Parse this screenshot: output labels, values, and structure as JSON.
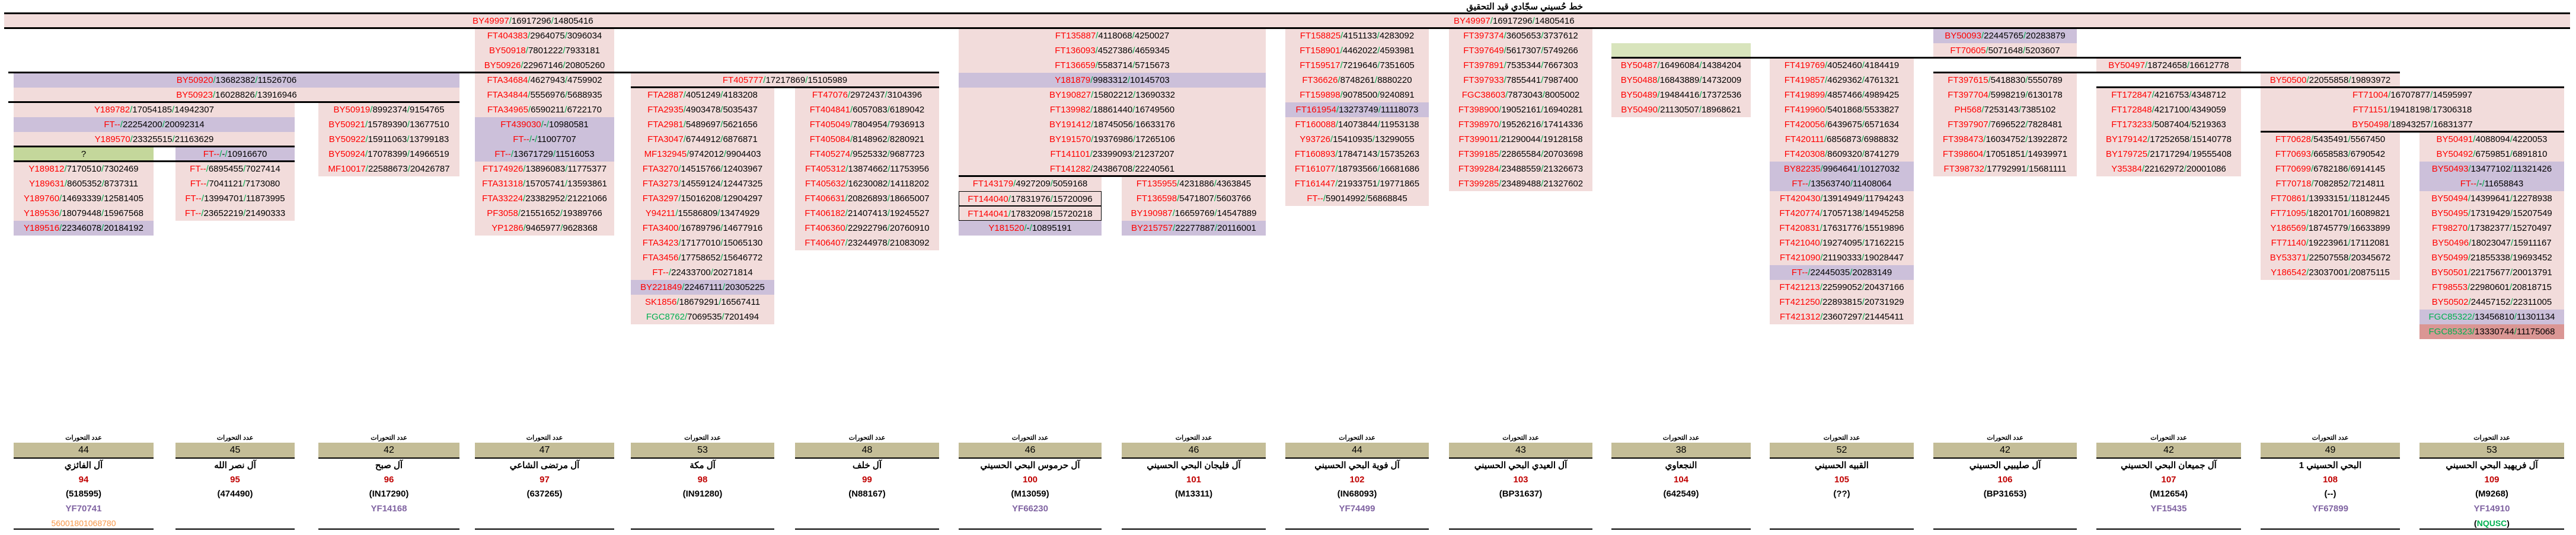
{
  "title": "خط حُسيني سجّادي قيد التحقيق",
  "root": {
    "snp": "BY49997",
    "pos1": "16917296",
    "pos2": "14805416"
  },
  "colors": {
    "snp": "#ff0000",
    "slash": "#00b050",
    "row_bg": "#f2dcdb",
    "highlight_bg": "#ccc0da",
    "header_bg": "#c4bd97",
    "number": "#c00000",
    "yf": "#8064a2"
  },
  "tree": {
    "blocks": {
      "b1": [
        [
          "FT404383",
          "2964075",
          "3096034"
        ],
        [
          "BY50918",
          "7801222",
          "7933181"
        ],
        [
          "BY50926",
          "22967146",
          "20805260"
        ]
      ],
      "b2": [
        [
          "FTA34684",
          "4627943",
          "4759902"
        ],
        [
          "FTA34844",
          "5556976",
          "5688935"
        ],
        [
          "FTA34965",
          "6590211",
          "6722170"
        ],
        [
          "FT439030",
          "-",
          "10980581",
          "p"
        ],
        [
          "FT--",
          "-",
          "11007707",
          "p"
        ],
        [
          "FT--",
          "13671729",
          "11516053",
          "p"
        ],
        [
          "FT174926",
          "13896083",
          "11775377"
        ],
        [
          "FTA31318",
          "15705741",
          "13593861"
        ],
        [
          "FTA33224",
          "23382952",
          "21221066"
        ],
        [
          "PF3058",
          "21551652",
          "19389766"
        ],
        [
          "YP1286",
          "9465977",
          "9628368"
        ]
      ],
      "b3": [
        [
          "BY50920",
          "13682382",
          "11526706",
          "p"
        ],
        [
          "BY50923",
          "16028826",
          "13916946"
        ]
      ],
      "b4": [
        [
          "Y189782",
          "17054185",
          "14942307"
        ],
        [
          "FT--",
          "22254200",
          "20092314",
          "p"
        ],
        [
          "Y189570",
          "23325515",
          "21163629"
        ]
      ],
      "b5q": "?",
      "b5": [
        [
          "FT--",
          "-",
          "10916670",
          "p"
        ]
      ],
      "b6": [
        [
          "Y189812",
          "7170510",
          "7302469"
        ],
        [
          "Y189631",
          "8605352",
          "8737311"
        ],
        [
          "Y189760",
          "14693339",
          "12581405"
        ],
        [
          "Y189536",
          "18079448",
          "15967568"
        ],
        [
          "Y189516",
          "22346078",
          "20184192",
          "p"
        ]
      ],
      "b7": [
        [
          "FT--",
          "6895455",
          "7027414"
        ],
        [
          "FT--",
          "7041121",
          "7173080"
        ],
        [
          "FT--",
          "13994701",
          "11873995"
        ],
        [
          "FT--",
          "23652219",
          "21490333"
        ]
      ],
      "b8": [
        [
          "BY50919",
          "8992374",
          "9154765"
        ],
        [
          "BY50921",
          "15789390",
          "13677510"
        ],
        [
          "BY50922",
          "15911063",
          "13799183"
        ],
        [
          "BY50924",
          "17078399",
          "14966519"
        ],
        [
          "MF10017",
          "22588673",
          "20426787"
        ]
      ],
      "b9": [
        [
          "FT405777",
          "17217869",
          "15105989"
        ]
      ],
      "b10": [
        [
          "FTA2887",
          "4051249",
          "4183208"
        ],
        [
          "FTA2935",
          "4903478",
          "5035437"
        ],
        [
          "FTA2981",
          "5489697",
          "5621656"
        ],
        [
          "FTA3047",
          "6744912",
          "6876871"
        ],
        [
          "MF132945",
          "9742012",
          "9904403"
        ],
        [
          "FTA3270",
          "14515766",
          "12403967"
        ],
        [
          "FTA3273",
          "14559124",
          "12447325"
        ],
        [
          "FTA3297",
          "15016208",
          "12904297"
        ],
        [
          "Y94211",
          "15586809",
          "13474929"
        ],
        [
          "FTA3400",
          "16789796",
          "14677916"
        ],
        [
          "FTA3423",
          "17177010",
          "15065130"
        ],
        [
          "FTA3456",
          "17758652",
          "15646772"
        ],
        [
          "FT--",
          "22433700",
          "20271814"
        ],
        [
          "BY221849",
          "22467111",
          "20305225",
          "p"
        ],
        [
          "SK1856",
          "18679291",
          "16567411"
        ],
        [
          "FGC8762",
          "7069535",
          "7201494",
          "g"
        ]
      ],
      "b11": [
        [
          "FT47076",
          "2972437",
          "3104396"
        ],
        [
          "FT404841",
          "6057083",
          "6189042"
        ],
        [
          "FT405049",
          "7804954",
          "7936913"
        ],
        [
          "FT405084",
          "8148962",
          "8280921"
        ],
        [
          "FT405274",
          "9525332",
          "9687723"
        ],
        [
          "FT405312",
          "13874662",
          "11753956"
        ],
        [
          "FT405632",
          "16230082",
          "14118202"
        ],
        [
          "FT406631",
          "20826893",
          "18665007"
        ],
        [
          "FT406182",
          "21407413",
          "19245527"
        ],
        [
          "FT406360",
          "22922796",
          "20760910"
        ],
        [
          "FT406407",
          "23244978",
          "21083092"
        ]
      ],
      "b12": [
        [
          "FT135887",
          "4118068",
          "4250027"
        ],
        [
          "FT136093",
          "4527386",
          "4659345"
        ],
        [
          "FT136659",
          "5583714",
          "5715673"
        ],
        [
          "Y181879",
          "9983312",
          "10145703",
          "p"
        ],
        [
          "BY190827",
          "15802212",
          "13690332"
        ],
        [
          "FT139982",
          "18861440",
          "16749560"
        ],
        [
          "BY191412",
          "18745056",
          "16633176"
        ],
        [
          "BY191570",
          "19376986",
          "17265106"
        ],
        [
          "FT141101",
          "23399093",
          "21237207"
        ],
        [
          "FT141282",
          "24386708",
          "22240561"
        ]
      ],
      "b13": [
        [
          "FT143179",
          "4927209",
          "5059168"
        ],
        [
          "FT144040",
          "17831976",
          "15720096",
          "b"
        ],
        [
          "FT144041",
          "17832098",
          "15720218",
          "b"
        ],
        [
          "Y181520",
          "-",
          "10895191",
          "p"
        ]
      ],
      "b14": [
        [
          "FT135955",
          "4231886",
          "4363845"
        ],
        [
          "FT136598",
          "5471807",
          "5603766"
        ],
        [
          "BY190987",
          "16659769",
          "14547889"
        ],
        [
          "BY215757",
          "22277887",
          "20116001",
          "p"
        ]
      ],
      "b15": [
        [
          "FT158825",
          "4151133",
          "4283092"
        ],
        [
          "FT158901",
          "4462022",
          "4593981"
        ],
        [
          "FT159517",
          "7219646",
          "7351605"
        ],
        [
          "FT36626",
          "8748261",
          "8880220"
        ],
        [
          "FT159898",
          "9078500",
          "9240891"
        ],
        [
          "FT161954",
          "13273749",
          "11118073",
          "p"
        ],
        [
          "FT160088",
          "14073844",
          "11953138"
        ],
        [
          "Y93726",
          "15410935",
          "13299055"
        ],
        [
          "FT160893",
          "17847143",
          "15735263"
        ],
        [
          "FT161077",
          "18793566",
          "16681686"
        ],
        [
          "FT161447",
          "21933751",
          "19771865"
        ],
        [
          "FT--",
          "59014992",
          "56868845"
        ]
      ],
      "b16": [
        [
          "FT397374",
          "3605653",
          "3737612"
        ],
        [
          "FT397649",
          "5617307",
          "5749266"
        ],
        [
          "FT397891",
          "7535344",
          "7667303"
        ],
        [
          "FT397933",
          "7855441",
          "7987400"
        ],
        [
          "FGC38603",
          "7873043",
          "8005002"
        ],
        [
          "FT398900",
          "19052161",
          "16940281"
        ],
        [
          "FT398970",
          "19526216",
          "17414336"
        ],
        [
          "FT399011",
          "21290044",
          "19128158"
        ],
        [
          "FT399185",
          "22865584",
          "20703698"
        ],
        [
          "FT399284",
          "23488559",
          "21326673"
        ],
        [
          "FT399285",
          "23489488",
          "21327602"
        ]
      ],
      "b18": [
        [
          "BY50487",
          "16496084",
          "14384204"
        ],
        [
          "BY50488",
          "16843889",
          "14732009"
        ],
        [
          "BY50489",
          "19484416",
          "17372536"
        ],
        [
          "BY50490",
          "21130507",
          "18968621"
        ]
      ],
      "b19": [
        [
          "FT419769",
          "4052460",
          "4184419"
        ],
        [
          "FT419857",
          "4629362",
          "4761321"
        ],
        [
          "FT419899",
          "4857466",
          "4989425"
        ],
        [
          "FT419960",
          "5401868",
          "5533827"
        ],
        [
          "FT420056",
          "6439675",
          "6571634"
        ],
        [
          "FT420111",
          "6856873",
          "6988832"
        ],
        [
          "FT420308",
          "8609320",
          "8741279"
        ],
        [
          "BY82235",
          "9964641",
          "10127032",
          "p"
        ],
        [
          "FT--",
          "13563740",
          "11408064",
          "p"
        ],
        [
          "FT420430",
          "13914949",
          "11794243"
        ],
        [
          "FT420774",
          "17057138",
          "14945258"
        ],
        [
          "FT420831",
          "17631776",
          "15519896"
        ],
        [
          "FT421040",
          "19274095",
          "17162215"
        ],
        [
          "FT421090",
          "21190333",
          "19028447"
        ],
        [
          "FT--",
          "22445035",
          "20283149",
          "p"
        ],
        [
          "FT421213",
          "22599052",
          "20437166"
        ],
        [
          "FT421250",
          "22893815",
          "20731929"
        ],
        [
          "FT421312",
          "23607297",
          "21445411"
        ]
      ],
      "b20": [
        [
          "BY50093",
          "22445765",
          "20283879",
          "p"
        ],
        [
          "FT70605",
          "5071648",
          "5203607"
        ]
      ],
      "b21": [
        [
          "BY50497",
          "18724658",
          "16612778"
        ]
      ],
      "b22": [
        [
          "FT397615",
          "5418830",
          "5550789"
        ],
        [
          "FT397704",
          "5998219",
          "6130178"
        ],
        [
          "PH568",
          "7253143",
          "7385102"
        ],
        [
          "FT397907",
          "7696522",
          "7828481"
        ],
        [
          "FT398473",
          "16034752",
          "13922872"
        ],
        [
          "FT398604",
          "17051851",
          "14939971"
        ],
        [
          "FT398732",
          "17792991",
          "15681111"
        ]
      ],
      "b23": [
        [
          "FT172847",
          "4216753",
          "4348712"
        ],
        [
          "FT172848",
          "4217100",
          "4349059"
        ],
        [
          "FT173233",
          "5087404",
          "5219363"
        ],
        [
          "BY179142",
          "17252658",
          "15140778"
        ],
        [
          "BY179725",
          "21717294",
          "19555408"
        ],
        [
          "Y35384",
          "22162972",
          "20001086"
        ]
      ],
      "b24": [
        [
          "BY50500",
          "22055858",
          "19893972"
        ]
      ],
      "b25": [
        [
          "FT71004",
          "16707877",
          "14595997"
        ],
        [
          "FT71151",
          "19418198",
          "17306318"
        ],
        [
          "BY50498",
          "18943257",
          "16831377"
        ]
      ],
      "b26": [
        [
          "FT70628",
          "5435491",
          "5567450"
        ],
        [
          "FT70693",
          "6658583",
          "6790542"
        ],
        [
          "FT70699",
          "6782186",
          "6914145"
        ],
        [
          "FT70718",
          "7082852",
          "7214811"
        ],
        [
          "FT70861",
          "13933151",
          "11812445"
        ],
        [
          "FT71095",
          "18201701",
          "16089821"
        ],
        [
          "Y186569",
          "18745779",
          "16633899"
        ],
        [
          "FT71140",
          "19223961",
          "17112081"
        ],
        [
          "BY53371",
          "22507558",
          "20345672"
        ],
        [
          "Y186542",
          "23037001",
          "20875115"
        ]
      ],
      "b27": [
        [
          "BY50491",
          "4088094",
          "4220053"
        ],
        [
          "BY50492",
          "6759851",
          "6891810"
        ],
        [
          "BY50493",
          "13477102",
          "11321426",
          "p"
        ],
        [
          "FT--",
          "-",
          "11658843",
          "p"
        ],
        [
          "BY50494",
          "14399641",
          "12278938"
        ],
        [
          "BY50495",
          "17319429",
          "15207549"
        ],
        [
          "FT98270",
          "17382377",
          "15270497"
        ],
        [
          "BY50496",
          "18023047",
          "15911167"
        ],
        [
          "BY50499",
          "21855338",
          "19693452"
        ],
        [
          "BY50501",
          "22175677",
          "20013791"
        ],
        [
          "FT98553",
          "22980601",
          "20818715"
        ],
        [
          "BY50502",
          "24457152",
          "22311005"
        ],
        [
          "FGC85322",
          "13456810",
          "11301134",
          "pg"
        ],
        [
          "FGC85323",
          "13330744",
          "11175068",
          "rg"
        ]
      ]
    }
  },
  "lineages": [
    {
      "header": "عدد التحورات",
      "count": "44",
      "name": "آل الفائزي",
      "number": "94",
      "id": "(518595)",
      "yf": "YF70741",
      "extra": "56001801068780"
    },
    {
      "header": "عدد التحورات",
      "count": "45",
      "name": "آل نصر الله",
      "number": "95",
      "id": "(474490)"
    },
    {
      "header": "عدد التحورات",
      "count": "42",
      "name": "آل صبح",
      "number": "96",
      "id": "(IN17290)",
      "yf": "YF14168"
    },
    {
      "header": "عدد التحورات",
      "count": "47",
      "name": "آل مرتضى الشاعي",
      "number": "97",
      "id": "(637265)"
    },
    {
      "header": "عدد التحورات",
      "count": "53",
      "name": "آل مكة",
      "number": "98",
      "id": "(IN91280)"
    },
    {
      "header": "عدد التحورات",
      "count": "48",
      "name": "آل خلف",
      "number": "99",
      "id": "(N88167)"
    },
    {
      "header": "عدد التحورات",
      "count": "46",
      "name": "آل حرموس البحي الحسيني",
      "number": "100",
      "id": "(M13059)",
      "yf": "YF66230"
    },
    {
      "header": "عدد التحورات",
      "count": "46",
      "name": "آل فليجان البحي الحسيني",
      "number": "101",
      "id": "(M13311)"
    },
    {
      "header": "عدد التحورات",
      "count": "44",
      "name": "آل فوية البحي الحسيني",
      "number": "102",
      "id": "(IN68093)",
      "yf": "YF74499"
    },
    {
      "header": "عدد التحورات",
      "count": "43",
      "name": "آل العيدي البحي الحسيني",
      "number": "103",
      "id": "(BP31637)"
    },
    {
      "header": "عدد التحورات",
      "count": "38",
      "name": "النجعاوي",
      "number": "104",
      "id": "(642549)"
    },
    {
      "header": "عدد التحورات",
      "count": "52",
      "name": "القبيه الحسيني",
      "number": "105",
      "id": "(??)"
    },
    {
      "header": "عدد التحورات",
      "count": "42",
      "name": "آل صليبيي الحسيني",
      "number": "106",
      "id": "(BP31653)"
    },
    {
      "header": "عدد التحورات",
      "count": "42",
      "name": "آل جميعان البحي الحسيني",
      "number": "107",
      "id": "(M12654)",
      "yf": "YF15435"
    },
    {
      "header": "عدد التحورات",
      "count": "49",
      "name": "البحي الحسيني 1",
      "number": "108",
      "id": "(--)",
      "yf": "YF67899"
    },
    {
      "header": "عدد التحورات",
      "count": "53",
      "name": "آل فريهيد البحي الحسيني",
      "number": "109",
      "id": "(M9268)",
      "yf": "YF14910",
      "extra_code": "NQUSC"
    }
  ]
}
